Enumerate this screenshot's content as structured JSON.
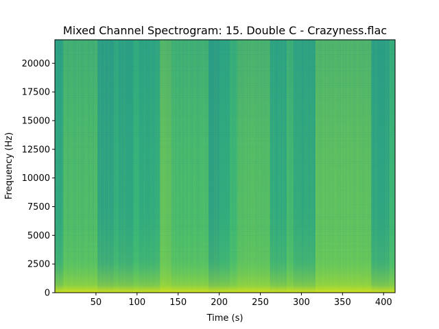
{
  "chart_data": {
    "type": "heatmap",
    "title": "Mixed Channel Spectrogram: 15. Double C - Crazyness.flac",
    "xlabel": "Time (s)",
    "ylabel": "Frequency (Hz)",
    "xlim": [
      0,
      414
    ],
    "ylim": [
      0,
      22050
    ],
    "xticks": [
      50,
      100,
      150,
      200,
      250,
      300,
      350,
      400
    ],
    "yticks": [
      0,
      2500,
      5000,
      7500,
      10000,
      12500,
      15000,
      17500,
      20000
    ],
    "grid": false,
    "colormap": "viridis",
    "colors": {
      "low": "#2a8a8c",
      "mid": "#35b779",
      "high": "#b5de2b",
      "peak": "#fde725"
    },
    "energy_segments": [
      {
        "t_start": 0,
        "t_end": 10,
        "level": 0.35
      },
      {
        "t_start": 10,
        "t_end": 52,
        "level": 0.62
      },
      {
        "t_start": 52,
        "t_end": 72,
        "level": 0.3
      },
      {
        "t_start": 72,
        "t_end": 78,
        "level": 0.45
      },
      {
        "t_start": 78,
        "t_end": 95,
        "level": 0.33
      },
      {
        "t_start": 95,
        "t_end": 103,
        "level": 0.5
      },
      {
        "t_start": 103,
        "t_end": 128,
        "level": 0.4
      },
      {
        "t_start": 128,
        "t_end": 142,
        "level": 0.72
      },
      {
        "t_start": 142,
        "t_end": 187,
        "level": 0.6
      },
      {
        "t_start": 187,
        "t_end": 200,
        "level": 0.28
      },
      {
        "t_start": 200,
        "t_end": 213,
        "level": 0.42
      },
      {
        "t_start": 213,
        "t_end": 222,
        "level": 0.55
      },
      {
        "t_start": 222,
        "t_end": 262,
        "level": 0.66
      },
      {
        "t_start": 262,
        "t_end": 282,
        "level": 0.38
      },
      {
        "t_start": 282,
        "t_end": 290,
        "level": 0.58
      },
      {
        "t_start": 290,
        "t_end": 317,
        "level": 0.36
      },
      {
        "t_start": 317,
        "t_end": 385,
        "level": 0.7
      },
      {
        "t_start": 385,
        "t_end": 407,
        "level": 0.32
      },
      {
        "t_start": 407,
        "t_end": 414,
        "level": 0.55
      }
    ]
  }
}
